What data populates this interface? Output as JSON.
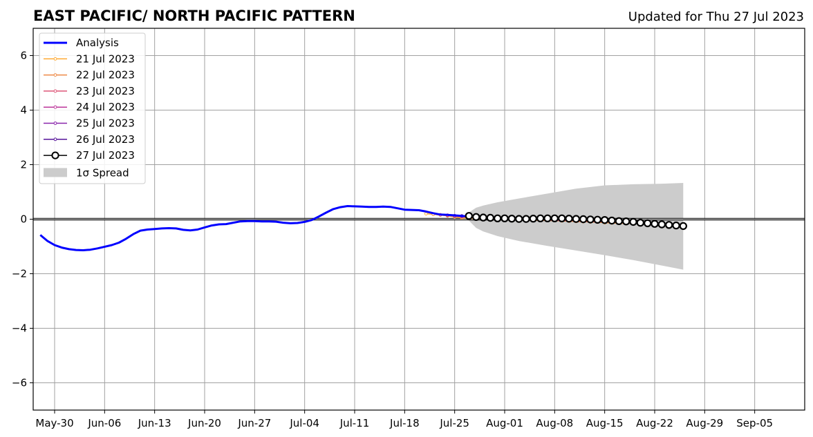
{
  "chart_data": {
    "type": "line",
    "title": "EAST PACIFIC/ NORTH PACIFIC PATTERN",
    "subtitle": "Updated for Thu 27 Jul 2023",
    "xlabel": "",
    "ylabel": "",
    "xlim": [
      "2023-05-27",
      "2023-09-12"
    ],
    "ylim": [
      -7,
      7
    ],
    "x_ticks": [
      "May-30",
      "Jun-06",
      "Jun-13",
      "Jun-20",
      "Jun-27",
      "Jul-04",
      "Jul-11",
      "Jul-18",
      "Jul-25",
      "Aug-01",
      "Aug-08",
      "Aug-15",
      "Aug-22",
      "Aug-29",
      "Sep-05"
    ],
    "x_tick_dates": [
      "2023-05-30",
      "2023-06-06",
      "2023-06-13",
      "2023-06-20",
      "2023-06-27",
      "2023-07-04",
      "2023-07-11",
      "2023-07-18",
      "2023-07-25",
      "2023-08-01",
      "2023-08-08",
      "2023-08-15",
      "2023-08-22",
      "2023-08-29",
      "2023-09-05"
    ],
    "y_ticks": [
      6,
      4,
      2,
      0,
      -2,
      -4,
      -6
    ],
    "y_tick_labels": [
      "6",
      "4",
      "2",
      "0",
      "−2",
      "−4",
      "−6"
    ],
    "grid": true,
    "zero_line": true,
    "legend_placement": "top-left",
    "series": [
      {
        "name": "Analysis",
        "color": "#0000ff",
        "x": [
          "2023-05-28",
          "2023-05-29",
          "2023-05-30",
          "2023-05-31",
          "2023-06-01",
          "2023-06-02",
          "2023-06-03",
          "2023-06-04",
          "2023-06-05",
          "2023-06-06",
          "2023-06-07",
          "2023-06-08",
          "2023-06-09",
          "2023-06-10",
          "2023-06-11",
          "2023-06-12",
          "2023-06-13",
          "2023-06-14",
          "2023-06-15",
          "2023-06-16",
          "2023-06-17",
          "2023-06-18",
          "2023-06-19",
          "2023-06-20",
          "2023-06-21",
          "2023-06-22",
          "2023-06-23",
          "2023-06-24",
          "2023-06-25",
          "2023-06-26",
          "2023-06-27",
          "2023-06-28",
          "2023-06-29",
          "2023-06-30",
          "2023-07-01",
          "2023-07-02",
          "2023-07-03",
          "2023-07-04",
          "2023-07-05",
          "2023-07-06",
          "2023-07-07",
          "2023-07-08",
          "2023-07-09",
          "2023-07-10",
          "2023-07-11",
          "2023-07-12",
          "2023-07-13",
          "2023-07-14",
          "2023-07-15",
          "2023-07-16",
          "2023-07-17",
          "2023-07-18",
          "2023-07-19",
          "2023-07-20",
          "2023-07-21",
          "2023-07-22",
          "2023-07-23",
          "2023-07-24",
          "2023-07-25",
          "2023-07-26",
          "2023-07-27"
        ],
        "values": [
          -0.58,
          -0.8,
          -0.95,
          -1.04,
          -1.1,
          -1.13,
          -1.14,
          -1.12,
          -1.07,
          -1.01,
          -0.95,
          -0.86,
          -0.72,
          -0.55,
          -0.42,
          -0.38,
          -0.36,
          -0.34,
          -0.33,
          -0.34,
          -0.39,
          -0.41,
          -0.38,
          -0.3,
          -0.23,
          -0.19,
          -0.18,
          -0.13,
          -0.08,
          -0.07,
          -0.07,
          -0.08,
          -0.08,
          -0.09,
          -0.13,
          -0.15,
          -0.14,
          -0.1,
          -0.03,
          0.1,
          0.24,
          0.37,
          0.44,
          0.48,
          0.47,
          0.46,
          0.45,
          0.45,
          0.46,
          0.45,
          0.4,
          0.35,
          0.34,
          0.33,
          0.28,
          0.22,
          0.17,
          0.16,
          0.14,
          0.12,
          0.1
        ]
      },
      {
        "name": "21 Jul 2023",
        "color": "#ffaa33",
        "x": [
          "2023-07-21",
          "2023-07-22",
          "2023-07-23",
          "2023-07-24",
          "2023-07-25",
          "2023-07-26",
          "2023-07-27",
          "2023-07-28",
          "2023-07-29",
          "2023-07-30",
          "2023-07-31",
          "2023-08-01",
          "2023-08-02",
          "2023-08-03",
          "2023-08-04",
          "2023-08-05",
          "2023-08-06",
          "2023-08-07",
          "2023-08-08",
          "2023-08-09",
          "2023-08-10",
          "2023-08-11",
          "2023-08-12",
          "2023-08-13",
          "2023-08-14",
          "2023-08-15",
          "2023-08-16",
          "2023-08-17",
          "2023-08-18"
        ],
        "values": [
          0.2,
          0.18,
          0.15,
          0.12,
          0.08,
          0.05,
          0.03,
          0.02,
          0.01,
          0.0,
          -0.01,
          -0.02,
          -0.02,
          -0.03,
          -0.03,
          -0.04,
          -0.04,
          -0.05,
          -0.05,
          -0.06,
          -0.07,
          -0.08,
          -0.09,
          -0.1,
          -0.11,
          -0.13,
          -0.14,
          -0.15,
          -0.16
        ]
      },
      {
        "name": "22 Jul 2023",
        "color": "#ee8844",
        "x": [
          "2023-07-22",
          "2023-07-23",
          "2023-07-24",
          "2023-07-25",
          "2023-07-26",
          "2023-07-27",
          "2023-07-28",
          "2023-07-29",
          "2023-07-30",
          "2023-07-31",
          "2023-08-01",
          "2023-08-02",
          "2023-08-03",
          "2023-08-04",
          "2023-08-05",
          "2023-08-06",
          "2023-08-07",
          "2023-08-08",
          "2023-08-09",
          "2023-08-10",
          "2023-08-11",
          "2023-08-12",
          "2023-08-13",
          "2023-08-14",
          "2023-08-15",
          "2023-08-16",
          "2023-08-17",
          "2023-08-18",
          "2023-08-19"
        ],
        "values": [
          0.18,
          0.16,
          0.13,
          0.1,
          0.07,
          0.05,
          0.04,
          0.03,
          0.02,
          0.01,
          0.0,
          -0.01,
          -0.02,
          -0.02,
          -0.03,
          -0.04,
          -0.04,
          -0.05,
          -0.06,
          -0.07,
          -0.08,
          -0.09,
          -0.1,
          -0.11,
          -0.12,
          -0.13,
          -0.14,
          -0.15,
          -0.16
        ]
      },
      {
        "name": "23 Jul 2023",
        "color": "#dd5577",
        "x": [
          "2023-07-23",
          "2023-07-24",
          "2023-07-25",
          "2023-07-26",
          "2023-07-27",
          "2023-07-28",
          "2023-07-29",
          "2023-07-30",
          "2023-07-31",
          "2023-08-01",
          "2023-08-02",
          "2023-08-03",
          "2023-08-04",
          "2023-08-05",
          "2023-08-06",
          "2023-08-07",
          "2023-08-08",
          "2023-08-09",
          "2023-08-10",
          "2023-08-11",
          "2023-08-12",
          "2023-08-13",
          "2023-08-14",
          "2023-08-15",
          "2023-08-16",
          "2023-08-17",
          "2023-08-18",
          "2023-08-19",
          "2023-08-20"
        ],
        "values": [
          0.16,
          0.14,
          0.11,
          0.09,
          0.07,
          0.06,
          0.05,
          0.04,
          0.03,
          0.02,
          0.01,
          0.0,
          -0.01,
          -0.02,
          -0.02,
          -0.03,
          -0.04,
          -0.05,
          -0.05,
          -0.06,
          -0.07,
          -0.08,
          -0.09,
          -0.1,
          -0.11,
          -0.12,
          -0.13,
          -0.14,
          -0.15
        ]
      },
      {
        "name": "24 Jul 2023",
        "color": "#bb3399",
        "x": [
          "2023-07-24",
          "2023-07-25",
          "2023-07-26",
          "2023-07-27",
          "2023-07-28",
          "2023-07-29",
          "2023-07-30",
          "2023-07-31",
          "2023-08-01",
          "2023-08-02",
          "2023-08-03",
          "2023-08-04",
          "2023-08-05",
          "2023-08-06",
          "2023-08-07",
          "2023-08-08",
          "2023-08-09",
          "2023-08-10",
          "2023-08-11",
          "2023-08-12",
          "2023-08-13",
          "2023-08-14",
          "2023-08-15",
          "2023-08-16",
          "2023-08-17",
          "2023-08-18",
          "2023-08-19",
          "2023-08-20",
          "2023-08-21"
        ],
        "values": [
          0.15,
          0.13,
          0.11,
          0.09,
          0.08,
          0.07,
          0.06,
          0.05,
          0.04,
          0.03,
          0.02,
          0.02,
          0.01,
          0.0,
          -0.01,
          -0.02,
          -0.03,
          -0.03,
          -0.04,
          -0.05,
          -0.06,
          -0.07,
          -0.08,
          -0.09,
          -0.1,
          -0.11,
          -0.12,
          -0.13,
          -0.14
        ]
      },
      {
        "name": "25 Jul 2023",
        "color": "#8822aa",
        "x": [
          "2023-07-25",
          "2023-07-26",
          "2023-07-27",
          "2023-07-28",
          "2023-07-29",
          "2023-07-30",
          "2023-07-31",
          "2023-08-01",
          "2023-08-02",
          "2023-08-03",
          "2023-08-04",
          "2023-08-05",
          "2023-08-06",
          "2023-08-07",
          "2023-08-08",
          "2023-08-09",
          "2023-08-10",
          "2023-08-11",
          "2023-08-12",
          "2023-08-13",
          "2023-08-14",
          "2023-08-15",
          "2023-08-16",
          "2023-08-17",
          "2023-08-18",
          "2023-08-19",
          "2023-08-20",
          "2023-08-21",
          "2023-08-22"
        ],
        "values": [
          0.13,
          0.12,
          0.1,
          0.09,
          0.08,
          0.07,
          0.06,
          0.05,
          0.05,
          0.04,
          0.03,
          0.03,
          0.02,
          0.01,
          0.0,
          -0.01,
          -0.02,
          -0.03,
          -0.04,
          -0.05,
          -0.06,
          -0.07,
          -0.08,
          -0.09,
          -0.1,
          -0.11,
          -0.12,
          -0.13,
          -0.14
        ]
      },
      {
        "name": "26 Jul 2023",
        "color": "#551199",
        "x": [
          "2023-07-26",
          "2023-07-27",
          "2023-07-28",
          "2023-07-29",
          "2023-07-30",
          "2023-07-31",
          "2023-08-01",
          "2023-08-02",
          "2023-08-03",
          "2023-08-04",
          "2023-08-05",
          "2023-08-06",
          "2023-08-07",
          "2023-08-08",
          "2023-08-09",
          "2023-08-10",
          "2023-08-11",
          "2023-08-12",
          "2023-08-13",
          "2023-08-14",
          "2023-08-15",
          "2023-08-16",
          "2023-08-17",
          "2023-08-18",
          "2023-08-19",
          "2023-08-20",
          "2023-08-21",
          "2023-08-22",
          "2023-08-23"
        ],
        "values": [
          0.12,
          0.11,
          0.1,
          0.09,
          0.08,
          0.07,
          0.06,
          0.05,
          0.05,
          0.04,
          0.04,
          0.03,
          0.03,
          0.02,
          0.01,
          0.0,
          -0.01,
          -0.02,
          -0.03,
          -0.04,
          -0.05,
          -0.06,
          -0.07,
          -0.08,
          -0.1,
          -0.11,
          -0.12,
          -0.13,
          -0.14
        ]
      },
      {
        "name": "27 Jul 2023",
        "color": "#000000",
        "marker_fill": "#ffffff",
        "x": [
          "2023-07-27",
          "2023-07-28",
          "2023-07-29",
          "2023-07-30",
          "2023-07-31",
          "2023-08-01",
          "2023-08-02",
          "2023-08-03",
          "2023-08-04",
          "2023-08-05",
          "2023-08-06",
          "2023-08-07",
          "2023-08-08",
          "2023-08-09",
          "2023-08-10",
          "2023-08-11",
          "2023-08-12",
          "2023-08-13",
          "2023-08-14",
          "2023-08-15",
          "2023-08-16",
          "2023-08-17",
          "2023-08-18",
          "2023-08-19",
          "2023-08-20",
          "2023-08-21",
          "2023-08-22",
          "2023-08-23",
          "2023-08-24",
          "2023-08-25",
          "2023-08-26"
        ],
        "values": [
          0.12,
          0.08,
          0.06,
          0.05,
          0.03,
          0.03,
          0.02,
          0.01,
          0.01,
          0.02,
          0.03,
          0.03,
          0.03,
          0.03,
          0.02,
          0.01,
          0.0,
          -0.01,
          -0.02,
          -0.03,
          -0.05,
          -0.07,
          -0.08,
          -0.1,
          -0.13,
          -0.15,
          -0.17,
          -0.19,
          -0.21,
          -0.23,
          -0.25
        ]
      }
    ],
    "spread": {
      "name": "1σ Spread",
      "color": "#cccccc",
      "x": [
        "2023-07-27",
        "2023-07-28",
        "2023-07-29",
        "2023-07-31",
        "2023-08-03",
        "2023-08-07",
        "2023-08-11",
        "2023-08-15",
        "2023-08-19",
        "2023-08-23",
        "2023-08-26"
      ],
      "upper": [
        0.25,
        0.42,
        0.5,
        0.62,
        0.76,
        0.94,
        1.12,
        1.24,
        1.28,
        1.3,
        1.33
      ],
      "lower": [
        -0.05,
        -0.32,
        -0.45,
        -0.62,
        -0.8,
        -0.98,
        -1.15,
        -1.32,
        -1.5,
        -1.7,
        -1.85
      ]
    }
  }
}
